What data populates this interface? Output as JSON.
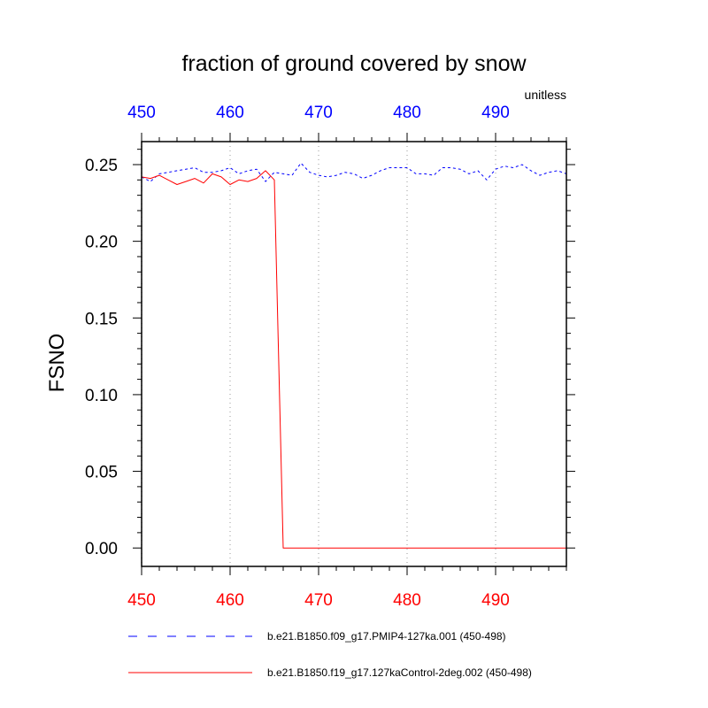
{
  "chart_data": {
    "type": "line",
    "title": "fraction of ground covered by snow",
    "ylabel": "FSNO",
    "units": "unitless",
    "xlim": [
      450,
      498
    ],
    "ylim": [
      -0.012,
      0.265
    ],
    "x_ticks_bottom": [
      450,
      460,
      470,
      480,
      490
    ],
    "x_ticks_top": [
      450,
      460,
      470,
      480,
      490
    ],
    "y_ticks": [
      0.0,
      0.05,
      0.1,
      0.15,
      0.2,
      0.25
    ],
    "y_tick_labels": [
      "0.00",
      "0.05",
      "0.10",
      "0.15",
      "0.20",
      "0.25"
    ],
    "grid": "vertical dotted at major x ticks",
    "legend_placement": "below",
    "series": [
      {
        "name": "b.e21.B1850.f09_g17.PMIP4-127ka.001 (450-498)",
        "color": "#0000ff",
        "style": "dashed",
        "axis": "top",
        "x": [
          450,
          451,
          452,
          453,
          454,
          455,
          456,
          457,
          458,
          459,
          460,
          461,
          462,
          463,
          464,
          465,
          466,
          467,
          468,
          469,
          470,
          471,
          472,
          473,
          474,
          475,
          476,
          477,
          478,
          479,
          480,
          481,
          482,
          483,
          484,
          485,
          486,
          487,
          488,
          489,
          490,
          491,
          492,
          493,
          494,
          495,
          496,
          497,
          498
        ],
        "values": [
          0.242,
          0.239,
          0.244,
          0.245,
          0.246,
          0.247,
          0.248,
          0.245,
          0.245,
          0.246,
          0.248,
          0.244,
          0.246,
          0.247,
          0.239,
          0.245,
          0.244,
          0.243,
          0.251,
          0.245,
          0.243,
          0.242,
          0.243,
          0.245,
          0.244,
          0.241,
          0.243,
          0.246,
          0.248,
          0.248,
          0.248,
          0.244,
          0.244,
          0.243,
          0.248,
          0.248,
          0.247,
          0.244,
          0.246,
          0.24,
          0.247,
          0.249,
          0.248,
          0.25,
          0.246,
          0.243,
          0.245,
          0.246,
          0.244
        ]
      },
      {
        "name": "b.e21.B1850.f19_g17.127kaControl-2deg.002 (450-498)",
        "color": "#ff0000",
        "style": "solid",
        "axis": "bottom",
        "x": [
          450,
          451,
          452,
          453,
          454,
          455,
          456,
          457,
          458,
          459,
          460,
          461,
          462,
          463,
          464,
          465,
          466,
          467,
          468,
          469,
          470,
          471,
          472,
          473,
          474,
          475,
          476,
          477,
          478,
          479,
          480,
          481,
          482,
          483,
          484,
          485,
          486,
          487,
          488,
          489,
          490,
          491,
          492,
          493,
          494,
          495,
          496,
          497,
          498
        ],
        "values": [
          0.242,
          0.241,
          0.243,
          0.24,
          0.237,
          0.239,
          0.241,
          0.238,
          0.244,
          0.242,
          0.237,
          0.24,
          0.239,
          0.241,
          0.246,
          0.24,
          0.0,
          0.0,
          0.0,
          0.0,
          0.0,
          0.0,
          0.0,
          0.0,
          0.0,
          0.0,
          0.0,
          0.0,
          0.0,
          0.0,
          0.0,
          0.0,
          0.0,
          0.0,
          0.0,
          0.0,
          0.0,
          0.0,
          0.0,
          0.0,
          0.0,
          0.0,
          0.0,
          0.0,
          0.0,
          0.0,
          0.0,
          0.0,
          0.0
        ]
      }
    ]
  }
}
